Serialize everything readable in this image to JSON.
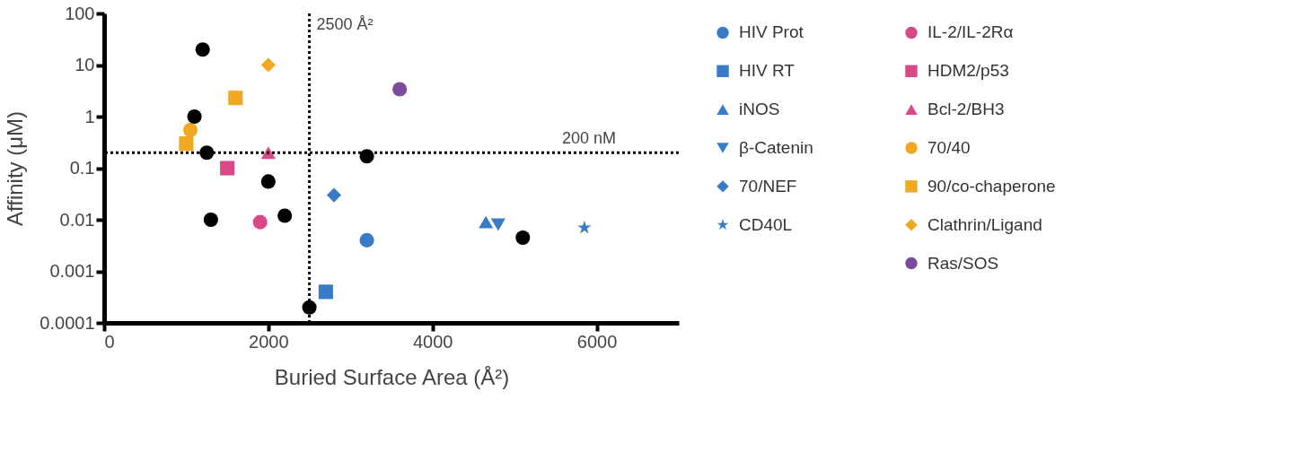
{
  "chart_data": {
    "type": "scatter",
    "xlabel": "Buried Surface Area (Å²)",
    "ylabel": "Affinity (μM)",
    "xlim": [
      0,
      7000
    ],
    "xticks": [
      0,
      2000,
      4000,
      6000
    ],
    "ylim": [
      0.0001,
      100
    ],
    "yticks": [
      0.0001,
      0.001,
      0.01,
      0.1,
      1,
      10,
      100
    ],
    "log": "y",
    "grid": false,
    "legend": "right",
    "ref_lines": [
      {
        "axis": "x",
        "value": 2500,
        "label": "2500 Å²",
        "line_style": "dotted"
      },
      {
        "axis": "y",
        "value": 0.2,
        "label": "200 nM",
        "line_style": "dotted"
      }
    ],
    "series": [
      {
        "name": "HIV Prot",
        "color": "#3a7bc8",
        "marker": "circle",
        "x": [
          3200
        ],
        "values": [
          0.004
        ]
      },
      {
        "name": "HIV RT",
        "color": "#3a7bc8",
        "marker": "square",
        "x": [
          2700
        ],
        "values": [
          0.0004
        ]
      },
      {
        "name": "iNOS",
        "color": "#3a7bc8",
        "marker": "triangle",
        "x": [
          4650
        ],
        "values": [
          0.009
        ]
      },
      {
        "name": "β-Catenin",
        "color": "#3a7bc8",
        "marker": "triangle-down",
        "x": [
          4800
        ],
        "values": [
          0.008
        ]
      },
      {
        "name": "70/NEF",
        "color": "#3a7bc8",
        "marker": "diamond",
        "x": [
          2800
        ],
        "values": [
          0.03
        ]
      },
      {
        "name": "CD40L",
        "color": "#3a7bc8",
        "marker": "star",
        "x": [
          5850
        ],
        "values": [
          0.007
        ]
      },
      {
        "name": "IL-2/IL-2Rα",
        "color": "#d9498a",
        "marker": "circle",
        "x": [
          1900
        ],
        "values": [
          0.009
        ]
      },
      {
        "name": "HDM2/p53",
        "color": "#d9498a",
        "marker": "square",
        "x": [
          1500
        ],
        "values": [
          0.1
        ]
      },
      {
        "name": "Bcl-2/BH3",
        "color": "#d9498a",
        "marker": "triangle",
        "x": [
          2000
        ],
        "values": [
          0.2
        ]
      },
      {
        "name": "70/40",
        "color": "#f0a823",
        "marker": "circle",
        "x": [
          1050
        ],
        "values": [
          0.55
        ]
      },
      {
        "name": "90/co-chaperone",
        "color": "#f0a823",
        "marker": "square",
        "x": [
          1000,
          1600
        ],
        "values": [
          0.3,
          2.3
        ]
      },
      {
        "name": "Clathrin/Ligand",
        "color": "#f0a823",
        "marker": "diamond",
        "x": [
          2000
        ],
        "values": [
          10
        ]
      },
      {
        "name": "Ras/SOS",
        "color": "#7d4b9c",
        "marker": "circle",
        "x": [
          3600
        ],
        "values": [
          3.4
        ]
      },
      {
        "color": "#000000",
        "marker": "circle",
        "x": [
          1200,
          1100,
          1250,
          1300,
          2000,
          2200,
          2500,
          3200,
          5100
        ],
        "values": [
          20,
          1,
          0.2,
          0.01,
          0.055,
          0.012,
          0.0002,
          0.17,
          0.0045
        ]
      }
    ]
  }
}
